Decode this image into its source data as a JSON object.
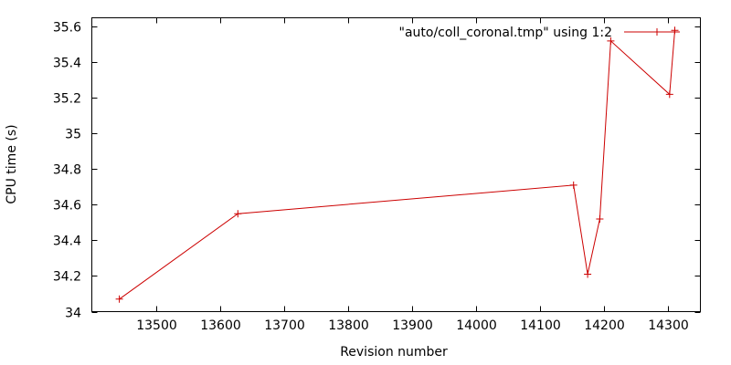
{
  "chart_data": {
    "type": "line",
    "title": "",
    "xlabel": "Revision number",
    "ylabel": "CPU time (s)",
    "xlim": [
      13400,
      14350
    ],
    "ylim": [
      34,
      35.65
    ],
    "xticks": [
      13500,
      13600,
      13700,
      13800,
      13900,
      14000,
      14100,
      14200,
      14300
    ],
    "yticks": [
      34,
      34.2,
      34.4,
      34.6,
      34.8,
      35,
      35.2,
      35.4,
      35.6
    ],
    "ytick_labels": [
      "34",
      "34.2",
      "34.4",
      "34.6",
      "34.8",
      "35",
      "35.2",
      "35.4",
      "35.6"
    ],
    "grid": false,
    "legend_position": "top-right",
    "series": [
      {
        "name": "\"auto/coll_coronal.tmp\" using 1:2",
        "color": "#cc0000",
        "marker": "plus",
        "points": [
          {
            "x": 13443,
            "y": 34.07
          },
          {
            "x": 13628,
            "y": 34.55
          },
          {
            "x": 14152,
            "y": 34.71
          },
          {
            "x": 14174,
            "y": 34.21
          },
          {
            "x": 14193,
            "y": 34.52
          },
          {
            "x": 14210,
            "y": 35.52
          },
          {
            "x": 14302,
            "y": 35.22
          },
          {
            "x": 14310,
            "y": 35.58
          }
        ]
      }
    ]
  }
}
